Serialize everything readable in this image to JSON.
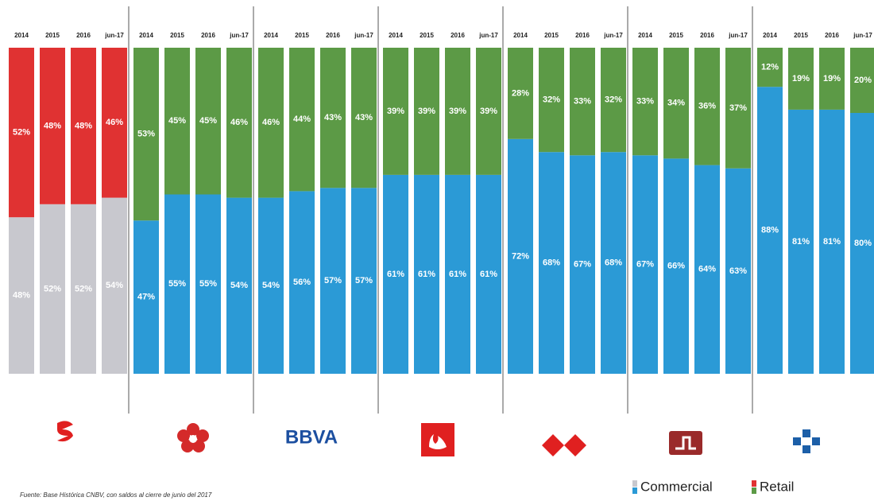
{
  "chart_data": [
    {
      "type": "stacked_bar",
      "categories": [
        "2014",
        "2015",
        "2016",
        "jun-17"
      ],
      "ylim": [
        0,
        100
      ],
      "series": [
        {
          "name": "Commercial",
          "color": "#c8c8ce",
          "values": [
            48,
            52,
            52,
            54
          ],
          "value_labels": [
            "48%",
            "52%",
            "52%",
            "54%"
          ]
        },
        {
          "name": "Retail",
          "color": "#e03232",
          "values": [
            52,
            48,
            48,
            46
          ],
          "value_labels": [
            "52%",
            "48%",
            "48%",
            "46%"
          ]
        }
      ]
    },
    {
      "type": "stacked_bar",
      "categories": [
        "2014",
        "2015",
        "2016",
        "jun-17"
      ],
      "ylim": [
        0,
        100
      ],
      "series": [
        {
          "name": "Commercial",
          "color": "#2b9ad6",
          "values": [
            47,
            55,
            55,
            54
          ],
          "value_labels": [
            "47%",
            "55%",
            "55%",
            "54%"
          ]
        },
        {
          "name": "Retail",
          "color": "#5c9a46",
          "values": [
            53,
            45,
            45,
            46
          ],
          "value_labels": [
            "53%",
            "45%",
            "45%",
            "46%"
          ]
        }
      ]
    },
    {
      "type": "stacked_bar",
      "categories": [
        "2014",
        "2015",
        "2016",
        "jun-17"
      ],
      "ylim": [
        0,
        100
      ],
      "series": [
        {
          "name": "Commercial",
          "color": "#2b9ad6",
          "values": [
            54,
            56,
            57,
            57
          ],
          "value_labels": [
            "54%",
            "56%",
            "57%",
            "57%"
          ]
        },
        {
          "name": "Retail",
          "color": "#5c9a46",
          "values": [
            46,
            44,
            43,
            43
          ],
          "value_labels": [
            "46%",
            "44%",
            "43%",
            "43%"
          ]
        }
      ]
    },
    {
      "type": "stacked_bar",
      "categories": [
        "2014",
        "2015",
        "2016",
        "jun-17"
      ],
      "ylim": [
        0,
        100
      ],
      "series": [
        {
          "name": "Commercial",
          "color": "#2b9ad6",
          "values": [
            61,
            61,
            61,
            61
          ],
          "value_labels": [
            "61%",
            "61%",
            "61%",
            "61%"
          ]
        },
        {
          "name": "Retail",
          "color": "#5c9a46",
          "values": [
            39,
            39,
            39,
            39
          ],
          "value_labels": [
            "39%",
            "39%",
            "39%",
            "39%"
          ]
        }
      ]
    },
    {
      "type": "stacked_bar",
      "categories": [
        "2014",
        "2015",
        "2016",
        "jun-17"
      ],
      "ylim": [
        0,
        100
      ],
      "series": [
        {
          "name": "Commercial",
          "color": "#2b9ad6",
          "values": [
            72,
            68,
            67,
            68
          ],
          "value_labels": [
            "72%",
            "68%",
            "67%",
            "68%"
          ]
        },
        {
          "name": "Retail",
          "color": "#5c9a46",
          "values": [
            28,
            32,
            33,
            32
          ],
          "value_labels": [
            "28%",
            "32%",
            "33%",
            "32%"
          ]
        }
      ]
    },
    {
      "type": "stacked_bar",
      "categories": [
        "2014",
        "2015",
        "2016",
        "jun-17"
      ],
      "ylim": [
        0,
        100
      ],
      "series": [
        {
          "name": "Commercial",
          "color": "#2b9ad6",
          "values": [
            67,
            66,
            64,
            63
          ],
          "value_labels": [
            "67%",
            "66%",
            "64%",
            "63%"
          ]
        },
        {
          "name": "Retail",
          "color": "#5c9a46",
          "values": [
            33,
            34,
            36,
            37
          ],
          "value_labels": [
            "33%",
            "34%",
            "36%",
            "37%"
          ]
        }
      ]
    },
    {
      "type": "stacked_bar",
      "categories": [
        "2014",
        "2015",
        "2016",
        "jun-17"
      ],
      "ylim": [
        0,
        100
      ],
      "series": [
        {
          "name": "Commercial",
          "color": "#2b9ad6",
          "values": [
            88,
            81,
            81,
            80
          ],
          "value_labels": [
            "88%",
            "81%",
            "81%",
            "80%"
          ]
        },
        {
          "name": "Retail",
          "color": "#5c9a46",
          "values": [
            12,
            19,
            19,
            20
          ],
          "value_labels": [
            "12%",
            "19%",
            "19%",
            "20%"
          ]
        }
      ]
    }
  ],
  "bbva_logo": "BBVA",
  "source": "Fuente: Base Histórica CNBV, con saldos al cierre de junio del 2017"
}
